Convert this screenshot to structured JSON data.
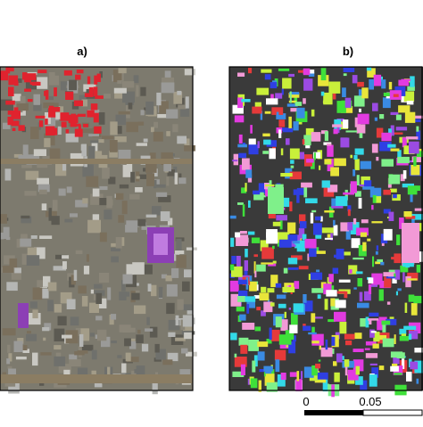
{
  "panels": [
    {
      "label": "a)"
    },
    {
      "label": "b)"
    }
  ],
  "scale_bar": {
    "labels": [
      "0",
      "0.05"
    ]
  }
}
